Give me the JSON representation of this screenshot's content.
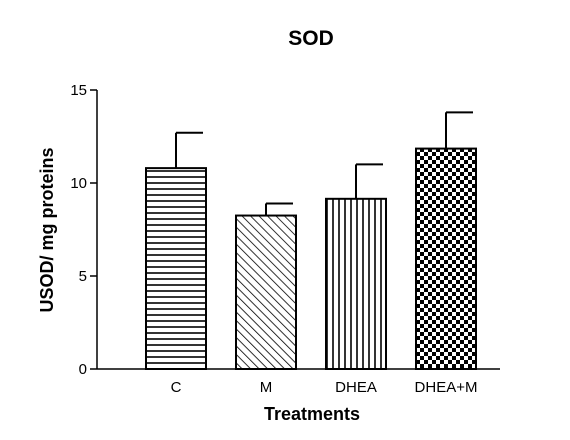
{
  "chart_data": {
    "type": "bar",
    "title": "SOD",
    "xlabel": "Treatments",
    "ylabel": "USOD/ mg proteins",
    "ylim": [
      0,
      15
    ],
    "yticks": [
      0,
      5,
      10,
      15
    ],
    "categories": [
      "C",
      "M",
      "DHEA",
      "DHEA+M"
    ],
    "values": [
      10.8,
      8.25,
      9.15,
      11.85
    ],
    "errors": [
      1.9,
      0.65,
      1.85,
      1.95
    ],
    "patterns": [
      "horizontal-lines",
      "diagonal-lines",
      "vertical-lines",
      "checkerboard"
    ],
    "grid": false,
    "legend": "none"
  }
}
